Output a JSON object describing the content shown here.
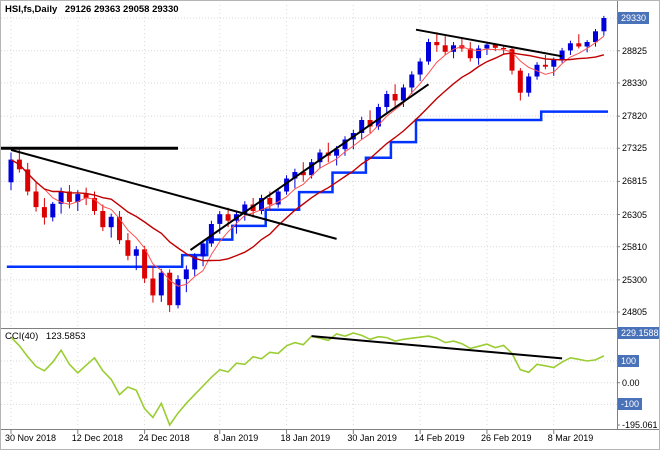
{
  "window": {
    "symbol_label": "HSI,fs,Daily",
    "ohlc_label": "29126 29363 29058 29330"
  },
  "colors": {
    "up_candle": "#0000DD",
    "down_candle": "#DD0000",
    "ma_fast": "#FF5050",
    "ma_slow": "#C00000",
    "stop_line": "#0033FF",
    "trendline": "#000000",
    "cci_line": "#9ACD32",
    "grid": "#D9D9D9",
    "separator": "#808080",
    "axis_text": "#000000",
    "price_box_bg": "#4A72B8",
    "price_box_text": "#FFFFFF"
  },
  "chart_data": {
    "type": "candlestick",
    "title": "HSI,fs,Daily",
    "ohlc_display": {
      "open": 29126,
      "high": 29363,
      "low": 29058,
      "close": 29330
    },
    "price_axis": {
      "ticks": [
        29330,
        28825,
        28330,
        27820,
        27325,
        26815,
        26305,
        25810,
        25300,
        24805
      ],
      "current_label": "29330",
      "current_value": 29330
    },
    "x_axis": {
      "labels": [
        {
          "text": "30 Nov 2018",
          "index": 0
        },
        {
          "text": "12 Dec 2018",
          "index": 8
        },
        {
          "text": "24 Dec 2018",
          "index": 16
        },
        {
          "text": "8 Jan 2019",
          "index": 25
        },
        {
          "text": "18 Jan 2019",
          "index": 33
        },
        {
          "text": "30 Jan 2019",
          "index": 41
        },
        {
          "text": "14 Feb 2019",
          "index": 49
        },
        {
          "text": "26 Feb 2019",
          "index": 57
        },
        {
          "text": "8 Mar 2019",
          "index": 65
        }
      ]
    },
    "candles": [
      [
        26800,
        27260,
        26680,
        27150
      ],
      [
        27150,
        27320,
        26950,
        27000
      ],
      [
        27000,
        27100,
        26600,
        26660
      ],
      [
        26660,
        26800,
        26350,
        26420
      ],
      [
        26420,
        26560,
        26150,
        26260
      ],
      [
        26260,
        26500,
        26200,
        26470
      ],
      [
        26470,
        26720,
        26320,
        26660
      ],
      [
        26660,
        26760,
        26400,
        26500
      ],
      [
        26500,
        26680,
        26360,
        26620
      ],
      [
        26620,
        26720,
        26450,
        26560
      ],
      [
        26560,
        26660,
        26300,
        26360
      ],
      [
        26360,
        26460,
        26050,
        26110
      ],
      [
        26110,
        26320,
        25950,
        26270
      ],
      [
        26270,
        26360,
        25850,
        25910
      ],
      [
        25910,
        26020,
        25600,
        25670
      ],
      [
        25670,
        25820,
        25450,
        25770
      ],
      [
        25770,
        25820,
        25250,
        25320
      ],
      [
        25320,
        25520,
        24950,
        25060
      ],
      [
        25060,
        25470,
        24960,
        25410
      ],
      [
        25410,
        25460,
        24805,
        24910
      ],
      [
        24910,
        25370,
        24860,
        25310
      ],
      [
        25310,
        25520,
        25110,
        25460
      ],
      [
        25460,
        25710,
        25360,
        25660
      ],
      [
        25660,
        25910,
        25510,
        25860
      ],
      [
        25860,
        26210,
        25810,
        26160
      ],
      [
        26160,
        26360,
        26010,
        26310
      ],
      [
        26310,
        26410,
        26110,
        26210
      ],
      [
        26210,
        26360,
        26010,
        26310
      ],
      [
        26310,
        26510,
        26210,
        26460
      ],
      [
        26460,
        26560,
        26260,
        26360
      ],
      [
        26360,
        26610,
        26310,
        26560
      ],
      [
        26560,
        26660,
        26360,
        26460
      ],
      [
        26460,
        26710,
        26410,
        26660
      ],
      [
        26660,
        26910,
        26610,
        26860
      ],
      [
        26860,
        27010,
        26710,
        26960
      ],
      [
        26960,
        27110,
        26810,
        26910
      ],
      [
        26910,
        27160,
        26860,
        27110
      ],
      [
        27110,
        27310,
        27010,
        27260
      ],
      [
        27260,
        27410,
        27110,
        27210
      ],
      [
        27210,
        27360,
        27060,
        27310
      ],
      [
        27310,
        27510,
        27210,
        27460
      ],
      [
        27460,
        27610,
        27310,
        27560
      ],
      [
        27560,
        27810,
        27460,
        27760
      ],
      [
        27760,
        27910,
        27560,
        27660
      ],
      [
        27660,
        28010,
        27610,
        27960
      ],
      [
        27960,
        28210,
        27860,
        28160
      ],
      [
        28160,
        28310,
        27960,
        28060
      ],
      [
        28060,
        28310,
        27960,
        28260
      ],
      [
        28260,
        28510,
        28160,
        28460
      ],
      [
        28460,
        28710,
        28360,
        28660
      ],
      [
        28660,
        29010,
        28610,
        28960
      ],
      [
        28960,
        29110,
        28810,
        28910
      ],
      [
        28910,
        29050,
        28760,
        28810
      ],
      [
        28810,
        28960,
        28710,
        28910
      ],
      [
        28910,
        29010,
        28810,
        28860
      ],
      [
        28860,
        28960,
        28660,
        28710
      ],
      [
        28710,
        28910,
        28610,
        28860
      ],
      [
        28860,
        28950,
        28760,
        28920
      ],
      [
        28920,
        28930,
        28820,
        28870
      ],
      [
        28870,
        28900,
        28780,
        28850
      ],
      [
        28850,
        28880,
        28460,
        28520
      ],
      [
        28520,
        28560,
        28060,
        28180
      ],
      [
        28180,
        28480,
        28120,
        28430
      ],
      [
        28430,
        28650,
        28380,
        28610
      ],
      [
        28610,
        28760,
        28540,
        28580
      ],
      [
        28580,
        28720,
        28440,
        28690
      ],
      [
        28690,
        28870,
        28640,
        28830
      ],
      [
        28830,
        28980,
        28760,
        28940
      ],
      [
        28940,
        29080,
        28860,
        28890
      ],
      [
        28890,
        28990,
        28800,
        28960
      ],
      [
        28960,
        29160,
        28890,
        29126
      ],
      [
        29126,
        29363,
        29058,
        29330
      ]
    ],
    "stop_line_steps": [
      {
        "from": -0.5,
        "to": 20.5,
        "value": 25500
      },
      {
        "from": 20.5,
        "to": 23.5,
        "value": 25680
      },
      {
        "from": 23.5,
        "to": 26.5,
        "value": 25920
      },
      {
        "from": 26.5,
        "to": 30.5,
        "value": 26130
      },
      {
        "from": 30.5,
        "to": 34.5,
        "value": 26380
      },
      {
        "from": 34.5,
        "to": 38.5,
        "value": 26650
      },
      {
        "from": 38.5,
        "to": 42.5,
        "value": 26950
      },
      {
        "from": 42.5,
        "to": 45.5,
        "value": 27180
      },
      {
        "from": 45.5,
        "to": 48.5,
        "value": 27420
      },
      {
        "from": 48.5,
        "to": 63.5,
        "value": 27760
      },
      {
        "from": 63.5,
        "to": 71.5,
        "value": 27890
      }
    ],
    "trendlines": [
      {
        "i1": -1.2,
        "p1": 27325,
        "i2": 20,
        "p2": 27325,
        "width": 3
      },
      {
        "i1": 0,
        "p1": 27300,
        "i2": 39,
        "p2": 25930,
        "width": 2
      },
      {
        "i1": 21.5,
        "p1": 25760,
        "i2": 50,
        "p2": 28310,
        "width": 2
      },
      {
        "i1": 48.5,
        "p1": 29150,
        "i2": 66,
        "p2": 28740,
        "width": 2
      }
    ],
    "indicator": {
      "name": "CCI(40)",
      "value_display": "123.5853",
      "range": {
        "max": 229.1588,
        "min": -195.061
      },
      "levels": [
        100,
        0,
        -100
      ],
      "axis_labels": [
        {
          "text": "229.1588",
          "value": 229.1588,
          "boxed": true
        },
        {
          "text": "100",
          "value": 100,
          "boxed": true
        },
        {
          "text": "0.00",
          "value": 0,
          "boxed": false
        },
        {
          "text": "-100",
          "value": -100,
          "boxed": true
        },
        {
          "text": "-195.061",
          "value": -195.061,
          "boxed": false
        }
      ],
      "values": [
        210,
        170,
        120,
        75,
        55,
        95,
        150,
        85,
        45,
        80,
        115,
        55,
        15,
        -55,
        -20,
        -35,
        -120,
        -160,
        -95,
        -195,
        -140,
        -95,
        -55,
        -15,
        25,
        60,
        50,
        90,
        85,
        120,
        110,
        140,
        135,
        170,
        185,
        175,
        215,
        205,
        195,
        225,
        215,
        229,
        218,
        200,
        212,
        208,
        192,
        200,
        205,
        210,
        215,
        205,
        185,
        192,
        180,
        158,
        168,
        178,
        162,
        172,
        135,
        60,
        48,
        85,
        78,
        70,
        95,
        115,
        108,
        100,
        105,
        123.5853
      ],
      "trendline": {
        "i1": 36,
        "v1": 215,
        "i2": 66,
        "v2": 112
      }
    }
  }
}
